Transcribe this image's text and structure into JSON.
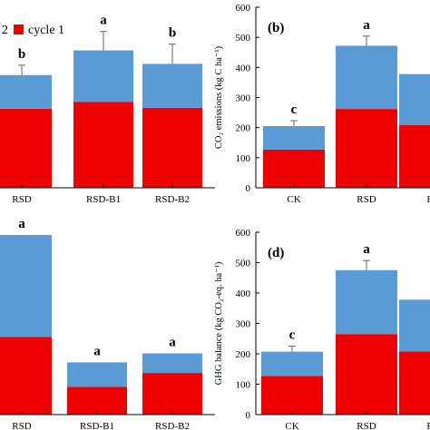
{
  "colors": {
    "cycle1": "#ee0000",
    "cycle2": "#5b9bd5",
    "axis": "#000000",
    "error_bar": "#666666"
  },
  "chart_data": [
    {
      "panel_label": "",
      "type": "bar",
      "stacked": true,
      "categories": [
        "RSD",
        "RSD-B1",
        "RSD-B2"
      ],
      "series": [
        {
          "name": "cycle 1",
          "values": [
            176,
            191,
            178
          ]
        },
        {
          "name": "",
          "values": [
            75,
            115,
            98
          ]
        }
      ],
      "error": [
        22,
        42,
        44
      ],
      "significance": [
        "b",
        "a",
        "b"
      ],
      "legend": {
        "text_prefix": "2",
        "entry": "cycle 1",
        "position": "top-left"
      },
      "ylim": [
        0,
        400
      ]
    },
    {
      "panel_label": "(b)",
      "type": "bar",
      "stacked": true,
      "ylabel": "CO₂ emissions (kg C ha⁻¹)",
      "ylim": [
        0,
        600
      ],
      "yticks": [
        "0",
        "100",
        "200",
        "300",
        "400",
        "500",
        "600"
      ],
      "categories": [
        "CK",
        "RSD",
        "R"
      ],
      "series": [
        {
          "name": "cycle 1",
          "values": [
            127,
            262,
            208
          ]
        },
        {
          "name": "",
          "values": [
            78,
            210,
            170
          ]
        }
      ],
      "error": [
        18,
        32,
        0
      ],
      "significance": [
        "c",
        "a",
        ""
      ]
    },
    {
      "panel_label": "",
      "type": "bar",
      "stacked": true,
      "categories": [
        "RSD",
        "RSD-B1",
        "RSD-B2"
      ],
      "series": [
        {
          "name": "cycle 1",
          "values": [
            95,
            34,
            51
          ]
        },
        {
          "name": "",
          "values": [
            125,
            30,
            24
          ]
        }
      ],
      "error": [
        0,
        0,
        0
      ],
      "significance": [
        "a",
        "a",
        "a"
      ],
      "ylim": [
        0,
        230
      ]
    },
    {
      "panel_label": "(d)",
      "type": "bar",
      "stacked": true,
      "ylabel": "GHG balance (kg CO₂-eq. ha⁻¹)",
      "ylim": [
        0,
        600
      ],
      "yticks": [
        "0",
        "100",
        "200",
        "300",
        "400",
        "500",
        "600"
      ],
      "categories": [
        "CK",
        "RSD",
        "R"
      ],
      "series": [
        {
          "name": "cycle 1",
          "values": [
            127,
            265,
            208
          ]
        },
        {
          "name": "",
          "values": [
            80,
            210,
            170
          ]
        }
      ],
      "error": [
        18,
        32,
        0
      ],
      "significance": [
        "c",
        "a",
        ""
      ]
    }
  ]
}
